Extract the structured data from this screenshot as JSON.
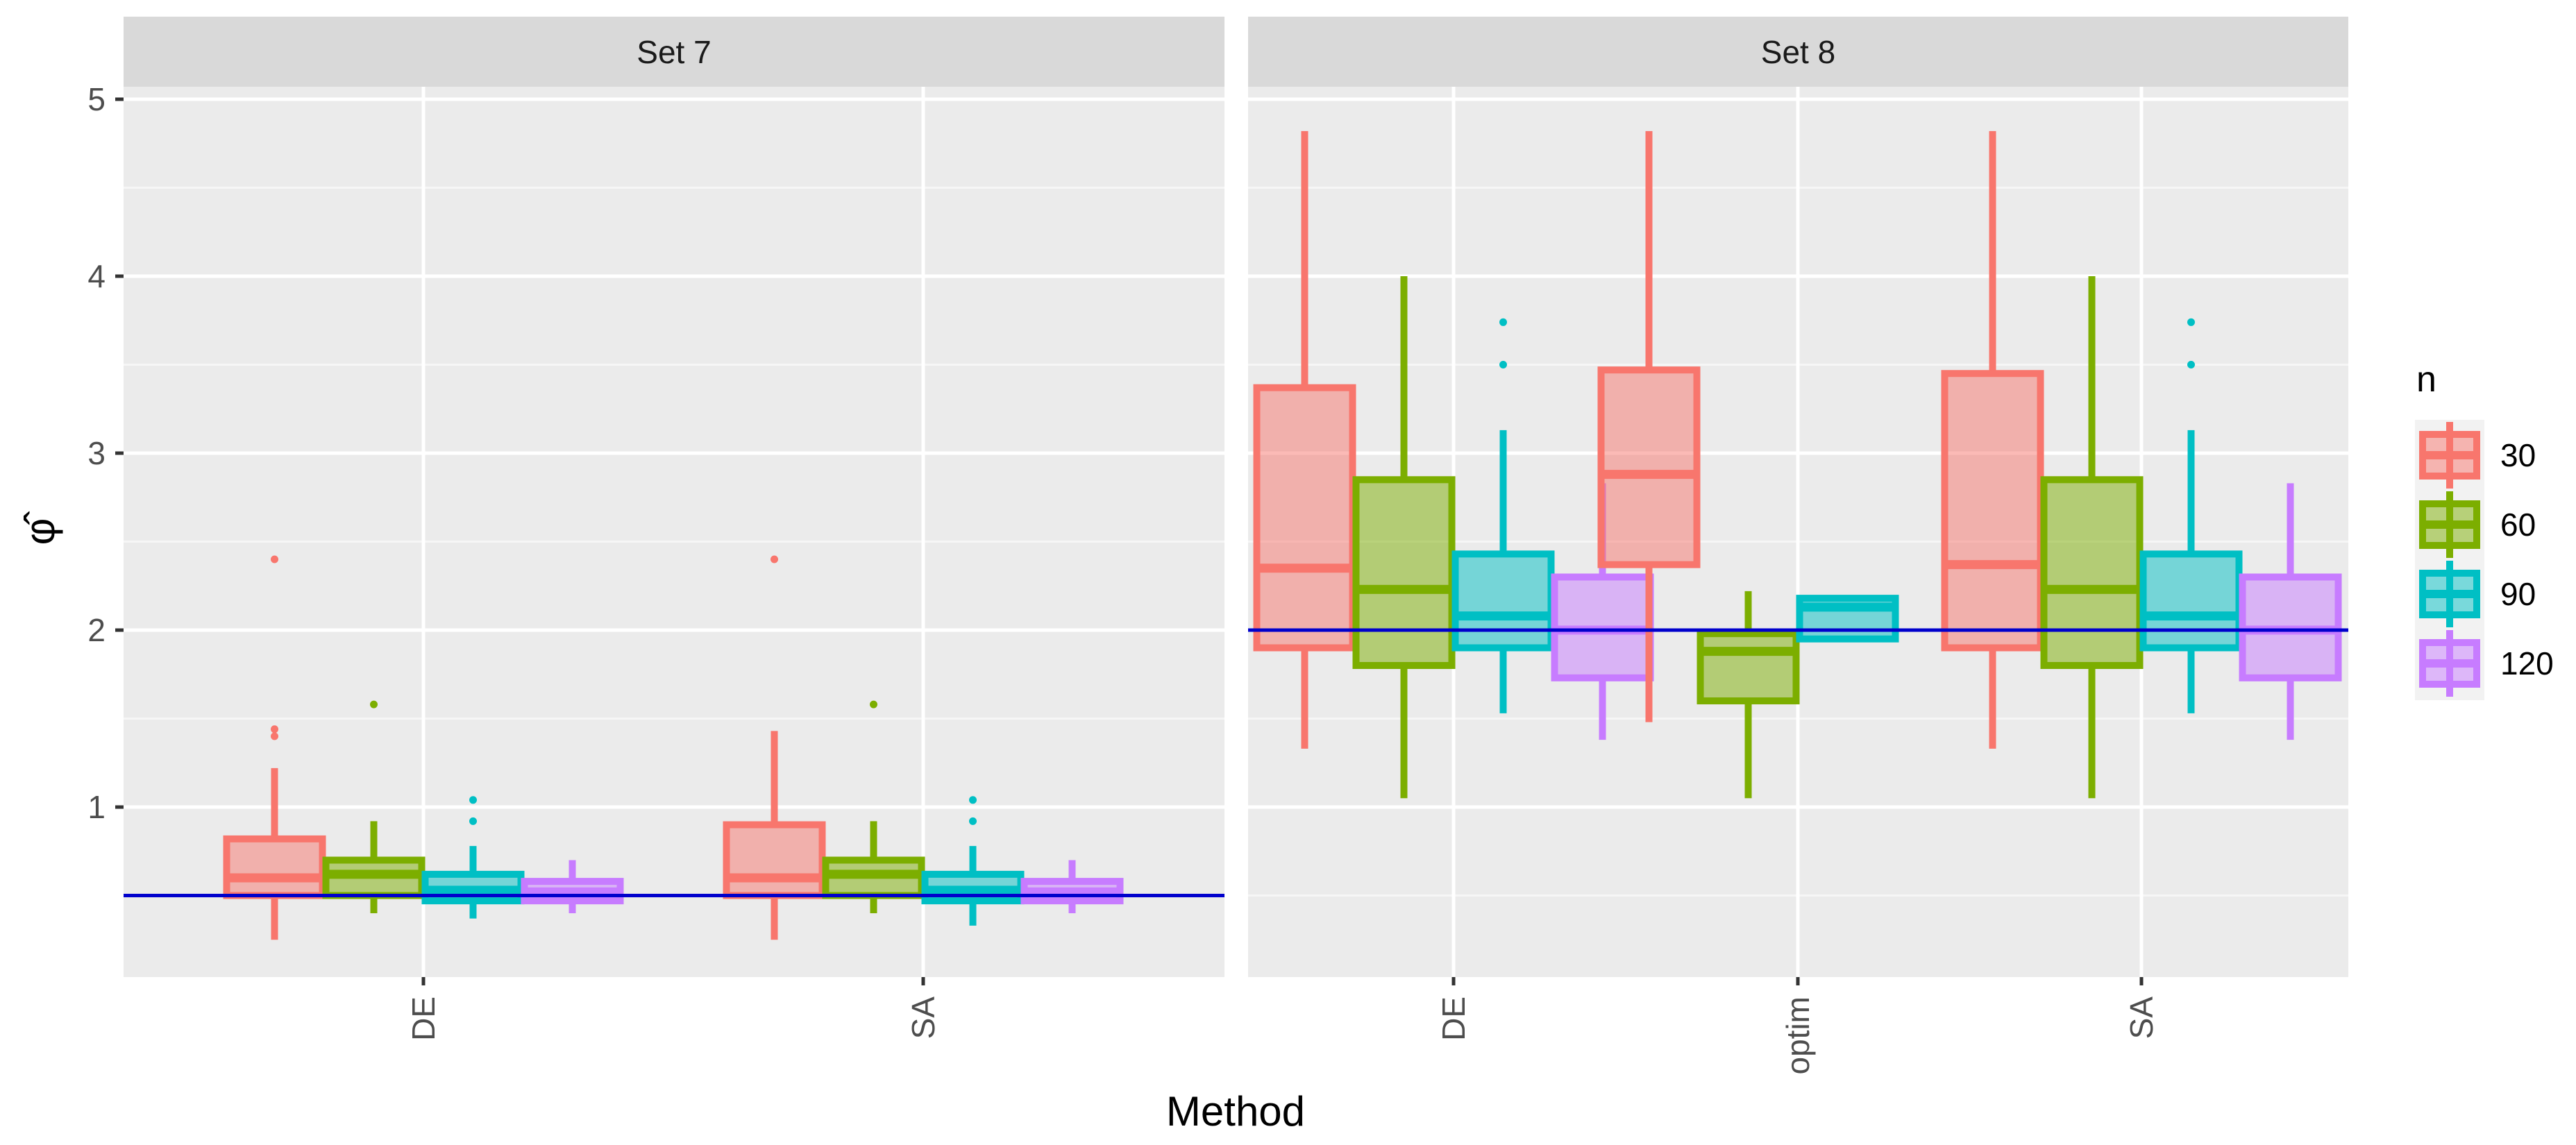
{
  "chart_data": {
    "type": "boxplot",
    "xlabel": "Method",
    "ylabel": "φ̂",
    "ylim": [
      0,
      5
    ],
    "y_ticks": [
      "1",
      "2",
      "3",
      "4",
      "5"
    ],
    "legend": {
      "title": "n",
      "position": "right",
      "entries": [
        "30",
        "60",
        "90",
        "120"
      ]
    },
    "colors": {
      "30": "#F8766D",
      "60": "#7CAE00",
      "90": "#00BFC4",
      "120": "#C77CFF",
      "reference": "#0000CC"
    },
    "panels": [
      {
        "label": "Set 7",
        "reference_line": 0.5,
        "methods": [
          {
            "name": "DE",
            "boxes": [
              {
                "n": "30",
                "min": 0.25,
                "q1": 0.5,
                "median": 0.6,
                "q3": 0.82,
                "max": 1.22,
                "outliers": [
                  1.4,
                  1.44,
                  2.4
                ]
              },
              {
                "n": "60",
                "min": 0.4,
                "q1": 0.5,
                "median": 0.62,
                "q3": 0.7,
                "max": 0.92,
                "outliers": [
                  1.58
                ]
              },
              {
                "n": "90",
                "min": 0.37,
                "q1": 0.47,
                "median": 0.53,
                "q3": 0.62,
                "max": 0.78,
                "outliers": [
                  0.92,
                  1.04
                ]
              },
              {
                "n": "120",
                "min": 0.4,
                "q1": 0.47,
                "median": 0.52,
                "q3": 0.58,
                "max": 0.7,
                "outliers": []
              }
            ]
          },
          {
            "name": "SA",
            "boxes": [
              {
                "n": "30",
                "min": 0.25,
                "q1": 0.5,
                "median": 0.6,
                "q3": 0.9,
                "max": 1.43,
                "outliers": [
                  2.4
                ]
              },
              {
                "n": "60",
                "min": 0.4,
                "q1": 0.5,
                "median": 0.62,
                "q3": 0.7,
                "max": 0.92,
                "outliers": [
                  1.58
                ]
              },
              {
                "n": "90",
                "min": 0.33,
                "q1": 0.47,
                "median": 0.53,
                "q3": 0.62,
                "max": 0.78,
                "outliers": [
                  0.92,
                  1.04
                ]
              },
              {
                "n": "120",
                "min": 0.4,
                "q1": 0.47,
                "median": 0.52,
                "q3": 0.58,
                "max": 0.7,
                "outliers": []
              }
            ]
          }
        ]
      },
      {
        "label": "Set 8",
        "reference_line": 2.0,
        "methods": [
          {
            "name": "DE",
            "boxes": [
              {
                "n": "30",
                "min": 1.33,
                "q1": 1.9,
                "median": 2.35,
                "q3": 3.37,
                "max": 4.82,
                "outliers": []
              },
              {
                "n": "60",
                "min": 1.05,
                "q1": 1.8,
                "median": 2.23,
                "q3": 2.85,
                "max": 4.0,
                "outliers": []
              },
              {
                "n": "90",
                "min": 1.53,
                "q1": 1.9,
                "median": 2.08,
                "q3": 2.43,
                "max": 3.13,
                "outliers": [
                  3.5,
                  3.74
                ]
              },
              {
                "n": "120",
                "min": 1.38,
                "q1": 1.73,
                "median": 2.0,
                "q3": 2.3,
                "max": 2.83,
                "outliers": []
              }
            ]
          },
          {
            "name": "optim",
            "boxes": [
              {
                "n": "30",
                "min": 1.48,
                "q1": 2.37,
                "median": 2.88,
                "q3": 3.47,
                "max": 4.82,
                "outliers": []
              },
              {
                "n": "60",
                "min": 1.05,
                "q1": 1.6,
                "median": 1.88,
                "q3": 1.98,
                "max": 2.22,
                "outliers": []
              },
              {
                "n": "90",
                "min": 1.95,
                "q1": 1.95,
                "median": 2.13,
                "q3": 2.18,
                "max": 2.18,
                "outliers": []
              }
            ]
          },
          {
            "name": "SA",
            "boxes": [
              {
                "n": "30",
                "min": 1.33,
                "q1": 1.9,
                "median": 2.37,
                "q3": 3.45,
                "max": 4.82,
                "outliers": []
              },
              {
                "n": "60",
                "min": 1.05,
                "q1": 1.8,
                "median": 2.23,
                "q3": 2.85,
                "max": 4.0,
                "outliers": []
              },
              {
                "n": "90",
                "min": 1.53,
                "q1": 1.9,
                "median": 2.08,
                "q3": 2.43,
                "max": 3.13,
                "outliers": [
                  3.5,
                  3.74
                ]
              },
              {
                "n": "120",
                "min": 1.38,
                "q1": 1.73,
                "median": 2.0,
                "q3": 2.3,
                "max": 2.83,
                "outliers": []
              }
            ]
          }
        ]
      }
    ]
  }
}
